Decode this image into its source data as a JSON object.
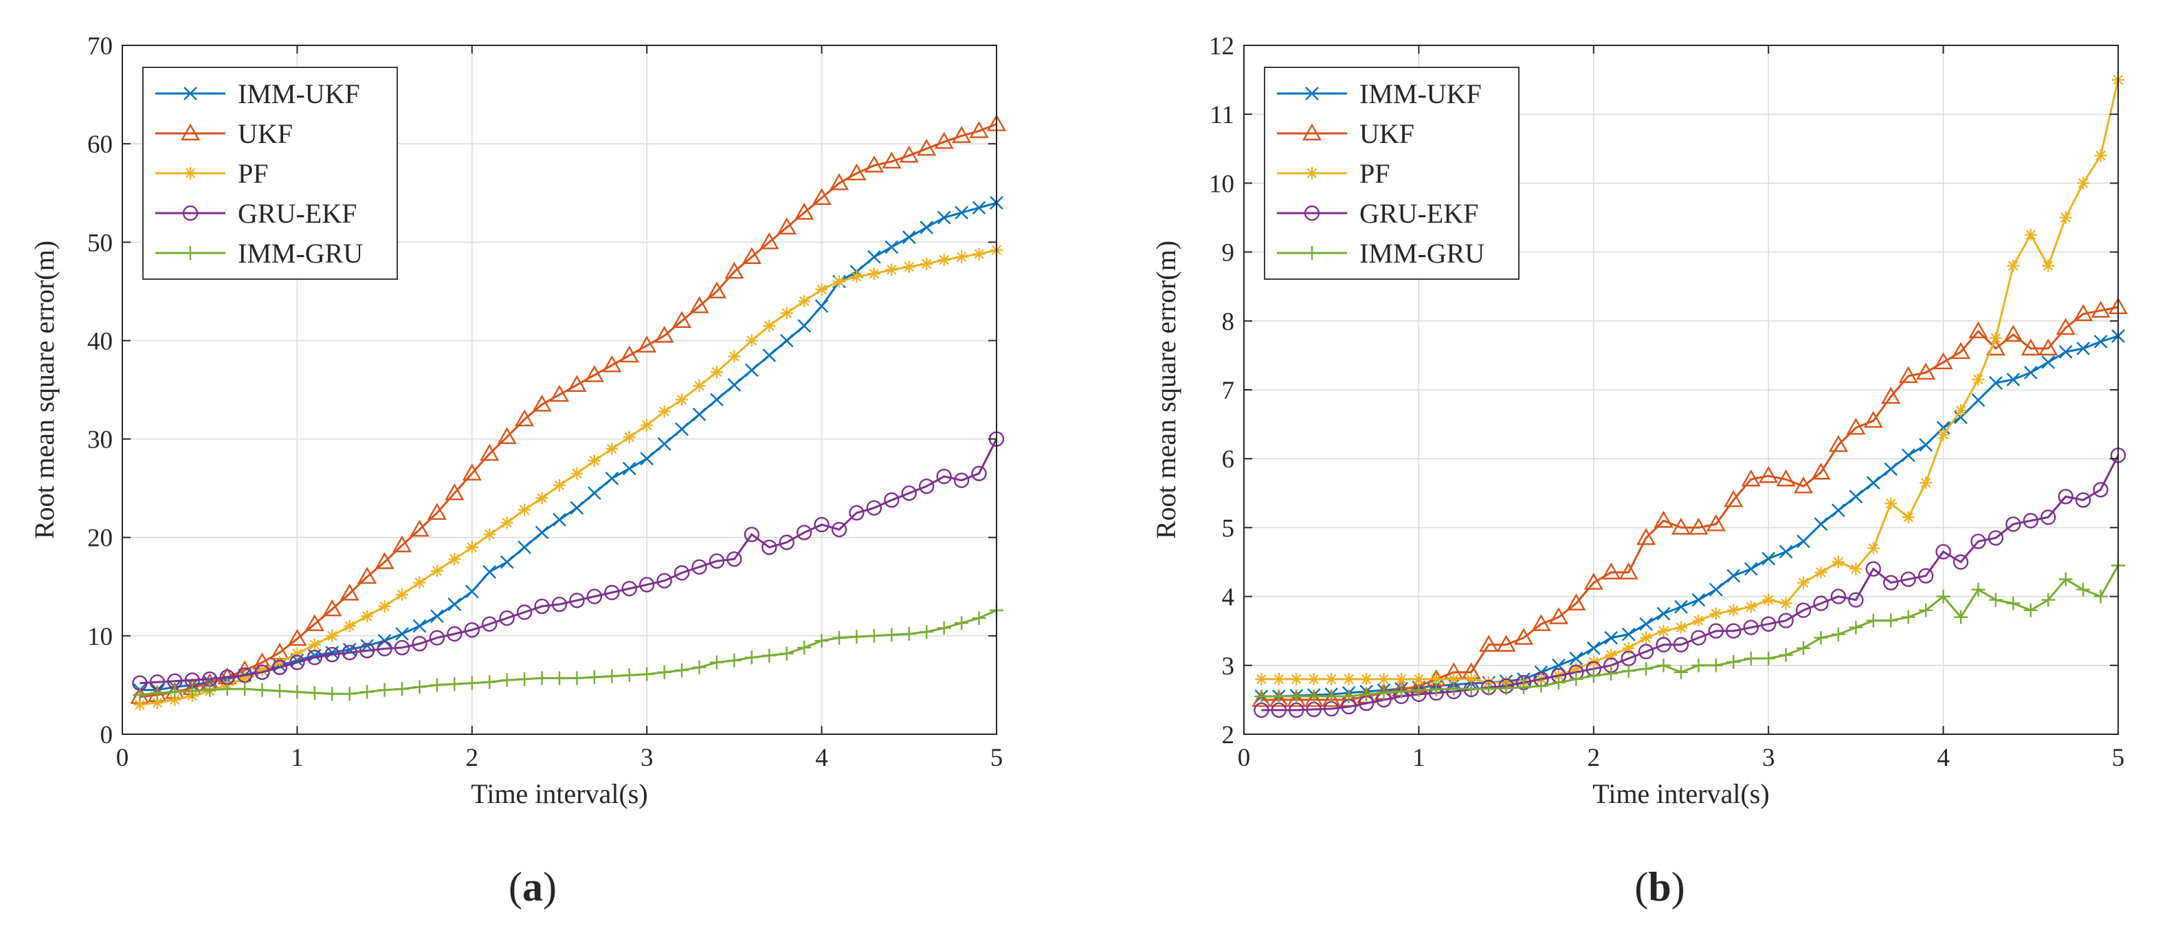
{
  "figure": {
    "panel_labels": [
      {
        "open": "(",
        "letter": "a",
        "close": ")"
      },
      {
        "open": "(",
        "letter": "b",
        "close": ")"
      }
    ]
  },
  "chart_data": [
    {
      "type": "line",
      "panel": "a",
      "title": "",
      "xlabel": "Time interval(s)",
      "ylabel": "Root mean square error(m)",
      "xlim": [
        0,
        5
      ],
      "ylim": [
        0,
        70
      ],
      "xticks": [
        0,
        1,
        2,
        3,
        4,
        5
      ],
      "yticks": [
        0,
        10,
        20,
        30,
        40,
        50,
        60,
        70
      ],
      "grid": true,
      "legend_position": "top-left",
      "x": [
        0.1,
        0.2,
        0.3,
        0.4,
        0.5,
        0.6,
        0.7,
        0.8,
        0.9,
        1.0,
        1.1,
        1.2,
        1.3,
        1.4,
        1.5,
        1.6,
        1.7,
        1.8,
        1.9,
        2.0,
        2.1,
        2.2,
        2.3,
        2.4,
        2.5,
        2.6,
        2.7,
        2.8,
        2.9,
        3.0,
        3.1,
        3.2,
        3.3,
        3.4,
        3.5,
        3.6,
        3.7,
        3.8,
        3.9,
        4.0,
        4.1,
        4.2,
        4.3,
        4.4,
        4.5,
        4.6,
        4.7,
        4.8,
        4.9,
        5.0
      ],
      "series": [
        {
          "name": "IMM-UKF",
          "color": "#0072BD",
          "marker": "x",
          "values": [
            4.5,
            4.5,
            4.8,
            5.0,
            5.3,
            5.6,
            6.0,
            6.5,
            7.0,
            7.5,
            8.0,
            8.3,
            8.6,
            9.0,
            9.5,
            10.2,
            11.0,
            12.0,
            13.2,
            14.5,
            16.5,
            17.5,
            19.0,
            20.5,
            21.8,
            23.0,
            24.5,
            26.0,
            27.0,
            28.0,
            29.5,
            31.0,
            32.5,
            34.0,
            35.5,
            37.0,
            38.5,
            40.0,
            41.5,
            43.5,
            46.0,
            47.0,
            48.5,
            49.5,
            50.5,
            51.5,
            52.5,
            53.0,
            53.5,
            54.0
          ]
        },
        {
          "name": "UKF",
          "color": "#D95319",
          "marker": "triangle",
          "values": [
            3.8,
            4.0,
            4.3,
            4.7,
            5.2,
            5.8,
            6.5,
            7.3,
            8.3,
            9.7,
            11.2,
            12.7,
            14.3,
            16.0,
            17.5,
            19.2,
            20.8,
            22.5,
            24.5,
            26.5,
            28.5,
            30.2,
            32.0,
            33.5,
            34.5,
            35.5,
            36.5,
            37.5,
            38.5,
            39.5,
            40.5,
            42.0,
            43.5,
            45.0,
            47.0,
            48.5,
            50.0,
            51.5,
            53.0,
            54.5,
            56.0,
            57.0,
            57.8,
            58.2,
            58.8,
            59.5,
            60.2,
            60.8,
            61.3,
            62.0
          ]
        },
        {
          "name": "PF",
          "color": "#EDB120",
          "marker": "star",
          "values": [
            3.0,
            3.2,
            3.5,
            3.9,
            4.4,
            5.0,
            5.7,
            6.5,
            7.3,
            8.2,
            9.1,
            10.0,
            11.0,
            12.0,
            13.0,
            14.2,
            15.4,
            16.6,
            17.8,
            19.0,
            20.3,
            21.5,
            22.8,
            24.0,
            25.3,
            26.5,
            27.8,
            29.0,
            30.2,
            31.4,
            32.8,
            34.0,
            35.4,
            36.8,
            38.4,
            40.0,
            41.5,
            42.8,
            44.0,
            45.2,
            46.0,
            46.5,
            46.8,
            47.2,
            47.5,
            47.8,
            48.2,
            48.5,
            48.8,
            49.2
          ]
        },
        {
          "name": "GRU-EKF",
          "color": "#7E2F8E",
          "marker": "circle",
          "values": [
            5.2,
            5.3,
            5.4,
            5.5,
            5.6,
            5.8,
            6.0,
            6.3,
            6.8,
            7.3,
            7.8,
            8.1,
            8.3,
            8.5,
            8.7,
            8.8,
            9.2,
            9.8,
            10.2,
            10.6,
            11.2,
            11.8,
            12.4,
            13.0,
            13.2,
            13.6,
            14.0,
            14.4,
            14.8,
            15.2,
            15.6,
            16.4,
            17.0,
            17.6,
            17.8,
            20.3,
            19.0,
            19.5,
            20.5,
            21.3,
            20.8,
            22.5,
            23.0,
            23.8,
            24.5,
            25.2,
            26.2,
            25.8,
            26.5,
            30.0
          ]
        },
        {
          "name": "IMM-GRU",
          "color": "#77AC30",
          "marker": "plus",
          "values": [
            4.0,
            4.2,
            4.3,
            4.4,
            4.5,
            4.6,
            4.6,
            4.5,
            4.4,
            4.3,
            4.2,
            4.1,
            4.1,
            4.3,
            4.5,
            4.6,
            4.8,
            5.0,
            5.1,
            5.2,
            5.3,
            5.5,
            5.6,
            5.7,
            5.7,
            5.7,
            5.8,
            5.9,
            6.0,
            6.1,
            6.3,
            6.5,
            6.8,
            7.3,
            7.5,
            7.8,
            8.0,
            8.2,
            8.8,
            9.5,
            9.8,
            9.9,
            10.0,
            10.1,
            10.2,
            10.4,
            10.8,
            11.3,
            11.8,
            12.6
          ]
        }
      ]
    },
    {
      "type": "line",
      "panel": "b",
      "title": "",
      "xlabel": "Time interval(s)",
      "ylabel": "Root mean square error(m)",
      "xlim": [
        0,
        5
      ],
      "ylim": [
        2,
        12
      ],
      "xticks": [
        0,
        1,
        2,
        3,
        4,
        5
      ],
      "yticks": [
        2,
        3,
        4,
        5,
        6,
        7,
        8,
        9,
        10,
        11,
        12
      ],
      "grid": true,
      "legend_position": "top-left",
      "x": [
        0.1,
        0.2,
        0.3,
        0.4,
        0.5,
        0.6,
        0.7,
        0.8,
        0.9,
        1.0,
        1.1,
        1.2,
        1.3,
        1.4,
        1.5,
        1.6,
        1.7,
        1.8,
        1.9,
        2.0,
        2.1,
        2.2,
        2.3,
        2.4,
        2.5,
        2.6,
        2.7,
        2.8,
        2.9,
        3.0,
        3.1,
        3.2,
        3.3,
        3.4,
        3.5,
        3.6,
        3.7,
        3.8,
        3.9,
        4.0,
        4.1,
        4.2,
        4.3,
        4.4,
        4.5,
        4.6,
        4.7,
        4.8,
        4.9,
        5.0
      ],
      "series": [
        {
          "name": "IMM-UKF",
          "color": "#0072BD",
          "marker": "x",
          "values": [
            2.55,
            2.55,
            2.56,
            2.57,
            2.58,
            2.6,
            2.62,
            2.64,
            2.66,
            2.68,
            2.7,
            2.72,
            2.74,
            2.75,
            2.77,
            2.8,
            2.9,
            3.0,
            3.1,
            3.25,
            3.4,
            3.45,
            3.6,
            3.75,
            3.85,
            3.95,
            4.1,
            4.3,
            4.4,
            4.55,
            4.65,
            4.8,
            5.05,
            5.25,
            5.45,
            5.65,
            5.85,
            6.05,
            6.2,
            6.45,
            6.6,
            6.85,
            7.1,
            7.15,
            7.25,
            7.4,
            7.55,
            7.6,
            7.7,
            7.78
          ]
        },
        {
          "name": "UKF",
          "color": "#D95319",
          "marker": "triangle",
          "values": [
            2.5,
            2.5,
            2.5,
            2.5,
            2.5,
            2.5,
            2.55,
            2.6,
            2.65,
            2.7,
            2.8,
            2.9,
            2.9,
            3.3,
            3.3,
            3.4,
            3.6,
            3.7,
            3.9,
            4.2,
            4.35,
            4.35,
            4.85,
            5.1,
            5.0,
            5.0,
            5.05,
            5.4,
            5.7,
            5.75,
            5.7,
            5.6,
            5.8,
            6.2,
            6.45,
            6.55,
            6.9,
            7.2,
            7.25,
            7.4,
            7.55,
            7.85,
            7.6,
            7.8,
            7.6,
            7.6,
            7.9,
            8.1,
            8.15,
            8.2
          ]
        },
        {
          "name": "PF",
          "color": "#EDB120",
          "marker": "star",
          "values": [
            2.8,
            2.8,
            2.8,
            2.8,
            2.8,
            2.8,
            2.8,
            2.8,
            2.8,
            2.8,
            2.8,
            2.8,
            2.8,
            2.75,
            2.75,
            2.75,
            2.8,
            2.85,
            2.95,
            3.05,
            3.15,
            3.25,
            3.4,
            3.5,
            3.55,
            3.65,
            3.75,
            3.8,
            3.85,
            3.95,
            3.9,
            4.2,
            4.35,
            4.5,
            4.4,
            4.7,
            5.35,
            5.15,
            5.65,
            6.35,
            6.7,
            7.15,
            7.75,
            8.8,
            9.25,
            8.8,
            9.5,
            10.0,
            10.4,
            11.5
          ]
        },
        {
          "name": "GRU-EKF",
          "color": "#7E2F8E",
          "marker": "circle",
          "values": [
            2.35,
            2.35,
            2.35,
            2.36,
            2.37,
            2.4,
            2.45,
            2.5,
            2.55,
            2.58,
            2.6,
            2.62,
            2.65,
            2.68,
            2.7,
            2.75,
            2.8,
            2.85,
            2.9,
            2.95,
            3.0,
            3.1,
            3.2,
            3.3,
            3.3,
            3.4,
            3.5,
            3.5,
            3.55,
            3.6,
            3.65,
            3.8,
            3.9,
            4.0,
            3.95,
            4.4,
            4.2,
            4.25,
            4.3,
            4.65,
            4.5,
            4.8,
            4.85,
            5.05,
            5.1,
            5.15,
            5.45,
            5.4,
            5.55,
            6.05
          ]
        },
        {
          "name": "IMM-GRU",
          "color": "#77AC30",
          "marker": "plus",
          "values": [
            2.55,
            2.55,
            2.55,
            2.55,
            2.55,
            2.55,
            2.58,
            2.6,
            2.62,
            2.64,
            2.65,
            2.66,
            2.66,
            2.66,
            2.67,
            2.68,
            2.7,
            2.75,
            2.8,
            2.85,
            2.88,
            2.92,
            2.95,
            3.0,
            2.9,
            3.0,
            3.0,
            3.05,
            3.1,
            3.1,
            3.15,
            3.25,
            3.4,
            3.45,
            3.55,
            3.65,
            3.65,
            3.7,
            3.8,
            4.0,
            3.7,
            4.1,
            3.95,
            3.9,
            3.8,
            3.95,
            4.25,
            4.1,
            4.0,
            4.45
          ]
        }
      ]
    }
  ]
}
